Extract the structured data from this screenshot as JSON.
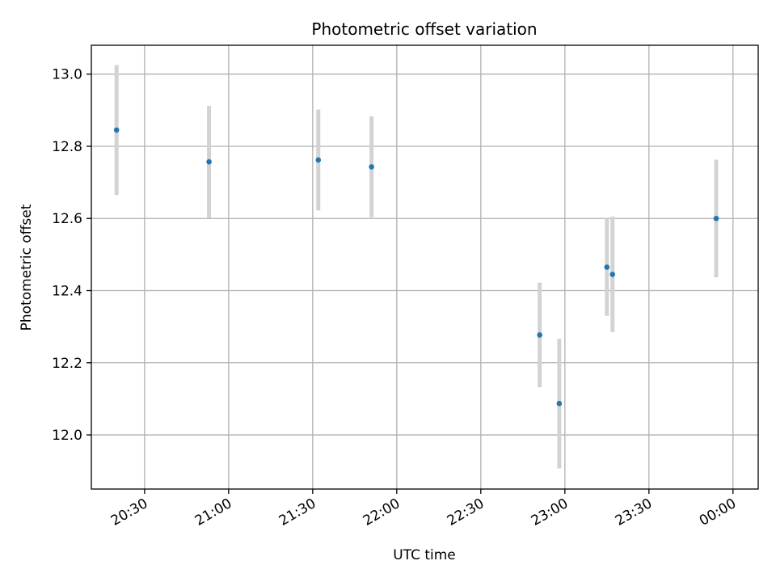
{
  "chart_data": {
    "type": "scatter",
    "title": "Photometric offset variation",
    "xlabel": "UTC time",
    "ylabel": "Photometric offset",
    "x_ticks": [
      "20:30",
      "21:00",
      "21:30",
      "22:00",
      "22:30",
      "23:00",
      "23:30",
      "00:00"
    ],
    "y_ticks": [
      "12.0",
      "12.2",
      "12.4",
      "12.6",
      "12.8",
      "13.0"
    ],
    "xlim": [
      "20:11",
      "00:09"
    ],
    "ylim": [
      11.85,
      13.08
    ],
    "grid": true,
    "legend": "none",
    "point_color": "#1f77b4",
    "errorbar_color": "#d3d3d3",
    "points": [
      {
        "x": "20:20",
        "y": 12.845,
        "err": 0.18
      },
      {
        "x": "20:53",
        "y": 12.757,
        "err": 0.155
      },
      {
        "x": "21:32",
        "y": 12.762,
        "err": 0.14
      },
      {
        "x": "21:51",
        "y": 12.743,
        "err": 0.14
      },
      {
        "x": "22:51",
        "y": 12.277,
        "err": 0.145
      },
      {
        "x": "22:58",
        "y": 12.087,
        "err": 0.18
      },
      {
        "x": "23:15",
        "y": 12.465,
        "err": 0.135
      },
      {
        "x": "23:17",
        "y": 12.445,
        "err": 0.16
      },
      {
        "x": "23:54",
        "y": 12.6,
        "err": 0.163
      }
    ]
  }
}
